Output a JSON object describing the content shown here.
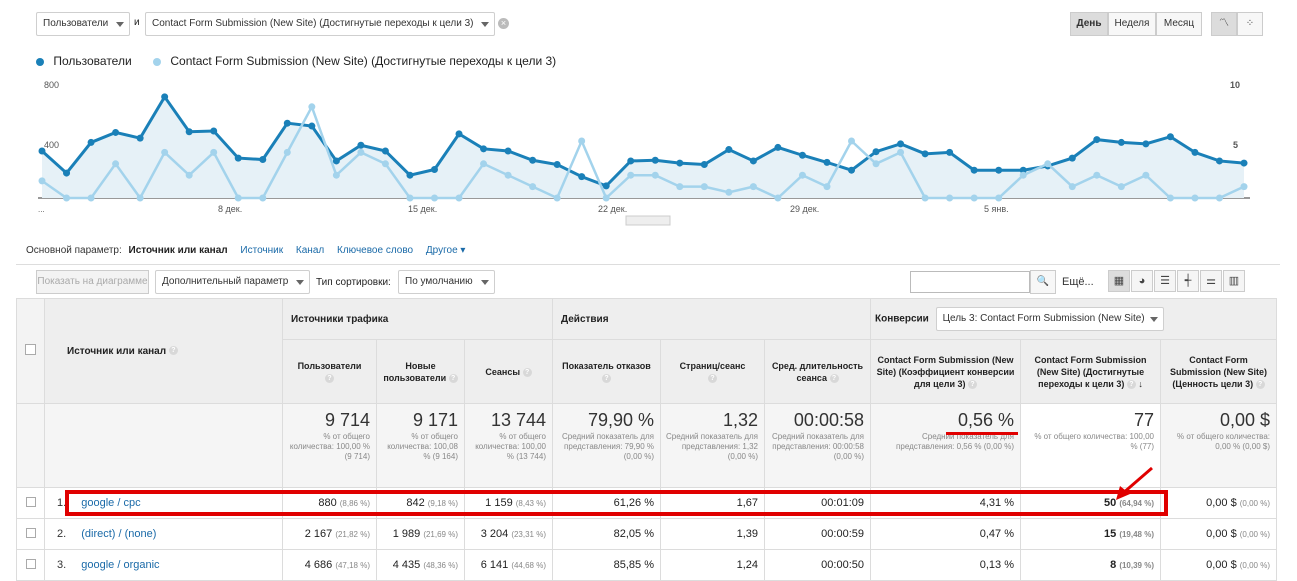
{
  "controls": {
    "metric1": "Пользователи",
    "and": "и",
    "metric2": "Contact Form Submission (New Site) (Достигнутые переходы к цели 3)",
    "period": [
      "День",
      "Неделя",
      "Месяц"
    ]
  },
  "legend": {
    "s1": "Пользователи",
    "s2": "Contact Form Submission (New Site) (Достигнутые переходы к цели 3)"
  },
  "chart_data": {
    "type": "line",
    "y_left_ticks": [
      "800",
      "400"
    ],
    "y_right_ticks": [
      "10",
      "5"
    ],
    "x_labels": [
      "...",
      "8 дек.",
      "15 дек.",
      "22 дек.",
      "29 дек.",
      "5 янв."
    ],
    "series": [
      {
        "name": "Пользователи",
        "color": "#1a80b8",
        "values": [
          330,
          175,
          390,
          460,
          420,
          710,
          465,
          470,
          280,
          270,
          525,
          505,
          260,
          370,
          330,
          160,
          200,
          450,
          345,
          330,
          265,
          235,
          150,
          85,
          260,
          265,
          245,
          235,
          340,
          260,
          355,
          300,
          250,
          195,
          325,
          380,
          310,
          320,
          195,
          195,
          195,
          225,
          280,
          410,
          390,
          380,
          430,
          320,
          260,
          245
        ]
      },
      {
        "name": "Contact Form Submission (New Site) (Достигнутые переходы к цели 3)",
        "color": "#a3d3ec",
        "values": [
          1.5,
          0,
          0,
          3,
          0,
          4,
          2,
          4,
          0,
          0,
          4,
          8,
          2,
          4,
          3,
          0,
          0,
          0,
          3,
          2,
          1,
          0,
          5,
          0,
          2,
          2,
          1,
          1,
          0.5,
          1,
          0,
          2,
          1,
          5,
          3,
          4,
          0,
          0,
          0,
          0,
          2,
          3,
          1,
          2,
          1,
          2,
          0,
          0,
          0,
          1
        ]
      }
    ],
    "grid": false
  },
  "tabs": {
    "label": "Основной параметр:",
    "items": [
      "Источник или канал",
      "Источник",
      "Канал",
      "Ключевое слово",
      "Другое"
    ]
  },
  "toolbar": {
    "plot": "Показать на диаграмме",
    "secondary": "Дополнительный параметр",
    "sort_label": "Тип сортировки:",
    "sort": "По умолчанию",
    "more": "Ещё..."
  },
  "table": {
    "dim": "Источник или канал",
    "groups": {
      "traffic": "Источники трафика",
      "actions": "Действия",
      "conv": "Конверсии",
      "goal": "Цель 3: Contact Form Submission (New Site)"
    },
    "cols": [
      "Пользователи",
      "Новые пользователи",
      "Сеансы",
      "Показатель отказов",
      "Страниц/сеанс",
      "Сред. длительность сеанса",
      "Contact Form Submission (New Site) (Коэффициент конверсии для цели 3)",
      "Contact Form Submission (New Site) (Достигнутые переходы к цели 3)",
      "Contact Form Submission (New Site) (Ценность цели 3)"
    ],
    "totals": [
      {
        "v": "9 714",
        "s": "% от общего количества: 100,00 % (9 714)"
      },
      {
        "v": "9 171",
        "s": "% от общего количества: 100,08 % (9 164)"
      },
      {
        "v": "13 744",
        "s": "% от общего количества: 100,00 % (13 744)"
      },
      {
        "v": "79,90 %",
        "s": "Средний показатель для представления: 79,90 % (0,00 %)"
      },
      {
        "v": "1,32",
        "s": "Средний показатель для представления: 1,32 (0,00 %)"
      },
      {
        "v": "00:00:58",
        "s": "Средний показатель для представления: 00:00:58 (0,00 %)"
      },
      {
        "v": "0,56 %",
        "s": "Средний показатель для представления: 0,56 % (0,00 %)"
      },
      {
        "v": "77",
        "s": "% от общего количества: 100,00 % (77)"
      },
      {
        "v": "0,00 $",
        "s": "% от общего количества: 0,00 % (0,00 $)"
      }
    ],
    "rows": [
      {
        "n": "1.",
        "name": "google / cpc",
        "c": [
          "880",
          "(8,86 %)",
          "842",
          "(9,18 %)",
          "1 159",
          "(8,43 %)",
          "61,26 %",
          "1,67",
          "00:01:09",
          "4,31 %",
          "50",
          "(64,94 %)",
          "0,00 $",
          "(0,00 %)"
        ]
      },
      {
        "n": "2.",
        "name": "(direct) / (none)",
        "c": [
          "2 167",
          "(21,82 %)",
          "1 989",
          "(21,69 %)",
          "3 204",
          "(23,31 %)",
          "82,05 %",
          "1,39",
          "00:00:59",
          "0,47 %",
          "15",
          "(19,48 %)",
          "0,00 $",
          "(0,00 %)"
        ]
      },
      {
        "n": "3.",
        "name": "google / organic",
        "c": [
          "4 686",
          "(47,18 %)",
          "4 435",
          "(48,36 %)",
          "6 141",
          "(44,68 %)",
          "85,85 %",
          "1,24",
          "00:00:50",
          "0,13 %",
          "8",
          "(10,39 %)",
          "0,00 $",
          "(0,00 %)"
        ]
      }
    ]
  }
}
